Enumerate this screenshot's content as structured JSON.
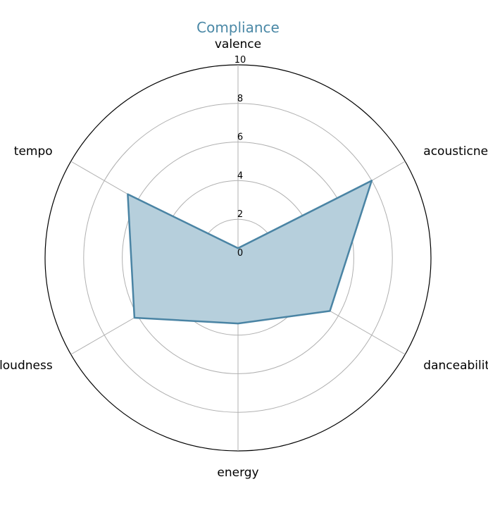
{
  "chart_data": {
    "type": "radar",
    "title": "Compliance",
    "categories": [
      "valence",
      "acousticness",
      "danceability",
      "energy",
      "loudness",
      "tempo"
    ],
    "series": [
      {
        "values": [
          0.5,
          8.0,
          5.5,
          3.4,
          6.2,
          6.6
        ]
      }
    ],
    "rlim": [
      0,
      10
    ],
    "r_ticks": [
      0,
      2,
      4,
      6,
      8,
      10
    ],
    "grid": true,
    "colors": {
      "line": "#4a84a4",
      "fill": "#b6cfdc",
      "title": "#4a88a6",
      "grid": "#b0b0b0",
      "frame": "#000000"
    }
  }
}
